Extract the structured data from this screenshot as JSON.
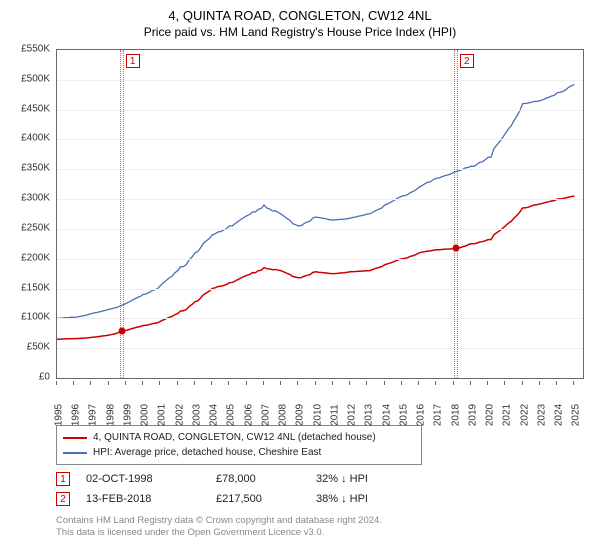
{
  "title": "4, QUINTA ROAD, CONGLETON, CW12 4NL",
  "subtitle": "Price paid vs. HM Land Registry's House Price Index (HPI)",
  "chart": {
    "type": "line",
    "background_color": "#ffffff",
    "grid_color": "#eeeeee",
    "border_color": "#666666",
    "x_years": [
      1995,
      1996,
      1997,
      1998,
      1999,
      2000,
      2001,
      2002,
      2003,
      2004,
      2005,
      2006,
      2007,
      2008,
      2009,
      2010,
      2011,
      2012,
      2013,
      2014,
      2015,
      2016,
      2017,
      2018,
      2019,
      2020,
      2021,
      2022,
      2023,
      2024,
      2025
    ],
    "y_ticks": [
      0,
      50000,
      100000,
      150000,
      200000,
      250000,
      300000,
      350000,
      400000,
      450000,
      500000,
      550000
    ],
    "y_tick_labels": [
      "£0",
      "£50K",
      "£100K",
      "£150K",
      "£200K",
      "£250K",
      "£300K",
      "£350K",
      "£400K",
      "£450K",
      "£500K",
      "£550K"
    ],
    "ylim": [
      0,
      550000
    ],
    "xlim": [
      1995,
      2025.5
    ],
    "label_fontsize": 10,
    "series": [
      {
        "name": "subject",
        "label": "4, QUINTA ROAD, CONGLETON, CW12 4NL (detached house)",
        "color": "#cc0000",
        "line_width": 1.5,
        "data": [
          [
            1995,
            65000
          ],
          [
            1996,
            66000
          ],
          [
            1997,
            68000
          ],
          [
            1998,
            72000
          ],
          [
            1998.75,
            78000
          ],
          [
            1999,
            80000
          ],
          [
            2000,
            88000
          ],
          [
            2001,
            95000
          ],
          [
            2002,
            108000
          ],
          [
            2003,
            128000
          ],
          [
            2004,
            150000
          ],
          [
            2005,
            160000
          ],
          [
            2006,
            172000
          ],
          [
            2007,
            185000
          ],
          [
            2008,
            180000
          ],
          [
            2009,
            168000
          ],
          [
            2010,
            178000
          ],
          [
            2011,
            175000
          ],
          [
            2012,
            178000
          ],
          [
            2013,
            180000
          ],
          [
            2014,
            190000
          ],
          [
            2015,
            200000
          ],
          [
            2016,
            210000
          ],
          [
            2017,
            215000
          ],
          [
            2018.12,
            217500
          ],
          [
            2019,
            225000
          ],
          [
            2020,
            232000
          ],
          [
            2021,
            255000
          ],
          [
            2022,
            285000
          ],
          [
            2023,
            292000
          ],
          [
            2024,
            300000
          ],
          [
            2025,
            305000
          ]
        ]
      },
      {
        "name": "hpi",
        "label": "HPI: Average price, detached house, Cheshire East",
        "color": "#4a6fb5",
        "line_width": 1.3,
        "data": [
          [
            1995,
            100000
          ],
          [
            1996,
            102000
          ],
          [
            1997,
            108000
          ],
          [
            1998,
            115000
          ],
          [
            1999,
            125000
          ],
          [
            2000,
            140000
          ],
          [
            2001,
            155000
          ],
          [
            2002,
            180000
          ],
          [
            2003,
            210000
          ],
          [
            2004,
            240000
          ],
          [
            2005,
            255000
          ],
          [
            2006,
            272000
          ],
          [
            2007,
            290000
          ],
          [
            2008,
            275000
          ],
          [
            2009,
            255000
          ],
          [
            2010,
            270000
          ],
          [
            2011,
            265000
          ],
          [
            2012,
            268000
          ],
          [
            2013,
            275000
          ],
          [
            2014,
            290000
          ],
          [
            2015,
            305000
          ],
          [
            2016,
            320000
          ],
          [
            2017,
            335000
          ],
          [
            2018,
            345000
          ],
          [
            2019,
            355000
          ],
          [
            2020,
            370000
          ],
          [
            2021,
            410000
          ],
          [
            2022,
            460000
          ],
          [
            2023,
            465000
          ],
          [
            2024,
            478000
          ],
          [
            2025,
            492000
          ]
        ]
      }
    ],
    "markers": [
      {
        "id": "1",
        "year": 1998.75,
        "price": 78000
      },
      {
        "id": "2",
        "year": 2018.12,
        "price": 217500
      }
    ]
  },
  "legend": {
    "border_color": "#888888",
    "items": [
      {
        "color": "#cc0000",
        "label": "4, QUINTA ROAD, CONGLETON, CW12 4NL (detached house)"
      },
      {
        "color": "#4a6fb5",
        "label": "HPI: Average price, detached house, Cheshire East"
      }
    ]
  },
  "sales": [
    {
      "id": "1",
      "date": "02-OCT-1998",
      "price": "£78,000",
      "vs_hpi": "32% ↓ HPI"
    },
    {
      "id": "2",
      "date": "13-FEB-2018",
      "price": "£217,500",
      "vs_hpi": "38% ↓ HPI"
    }
  ],
  "footer": {
    "line1": "Contains HM Land Registry data © Crown copyright and database right 2024.",
    "line2": "This data is licensed under the Open Government Licence v3.0."
  }
}
